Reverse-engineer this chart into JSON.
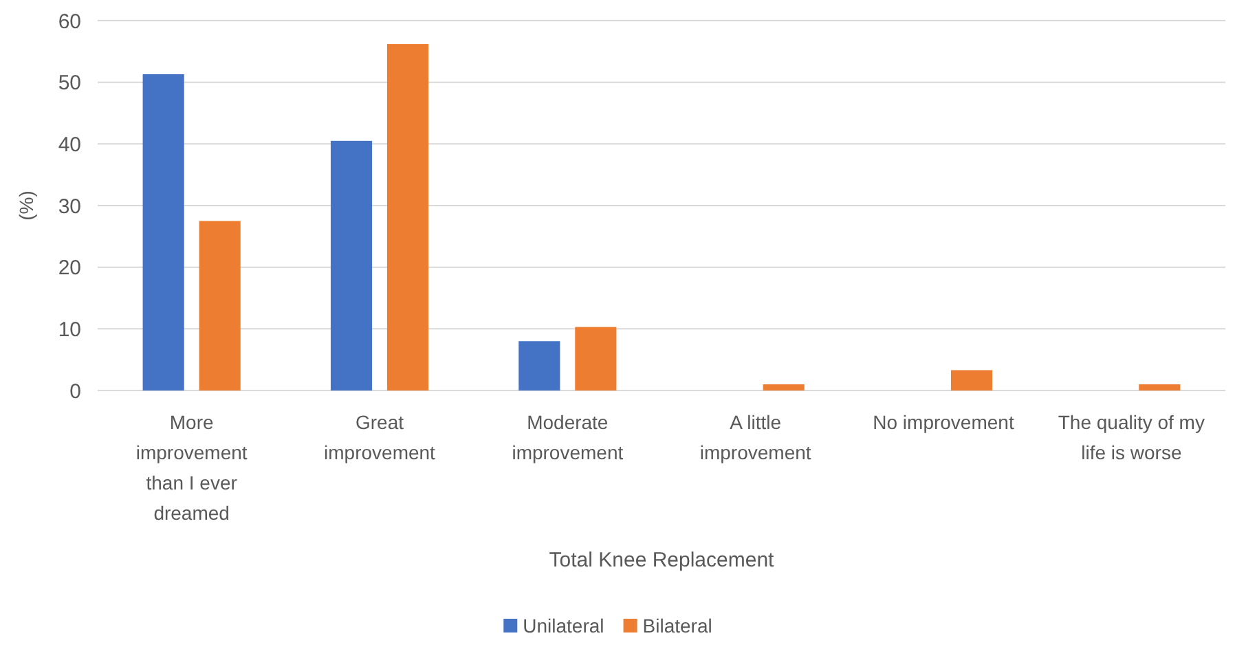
{
  "chart_data": {
    "type": "bar",
    "xlabel": "Total Knee Replacement",
    "ylabel": "(%)",
    "categories": [
      "More improvement than I ever dreamed",
      "Great improvement",
      "Moderate improvement",
      "A little improvement",
      "No improvement",
      "The quality of my life is worse"
    ],
    "series": [
      {
        "name": "Unilateral",
        "color": "#4472c4",
        "values": [
          51.3,
          40.5,
          8.0,
          0,
          0,
          0
        ]
      },
      {
        "name": "Bilateral",
        "color": "#ed7d31",
        "values": [
          27.5,
          56.2,
          10.3,
          1.0,
          3.3,
          1.0
        ]
      }
    ],
    "ylim": [
      0,
      60
    ],
    "yticks": [
      0,
      10,
      20,
      30,
      40,
      50,
      60
    ],
    "grid": "y",
    "legend": "bottom"
  }
}
